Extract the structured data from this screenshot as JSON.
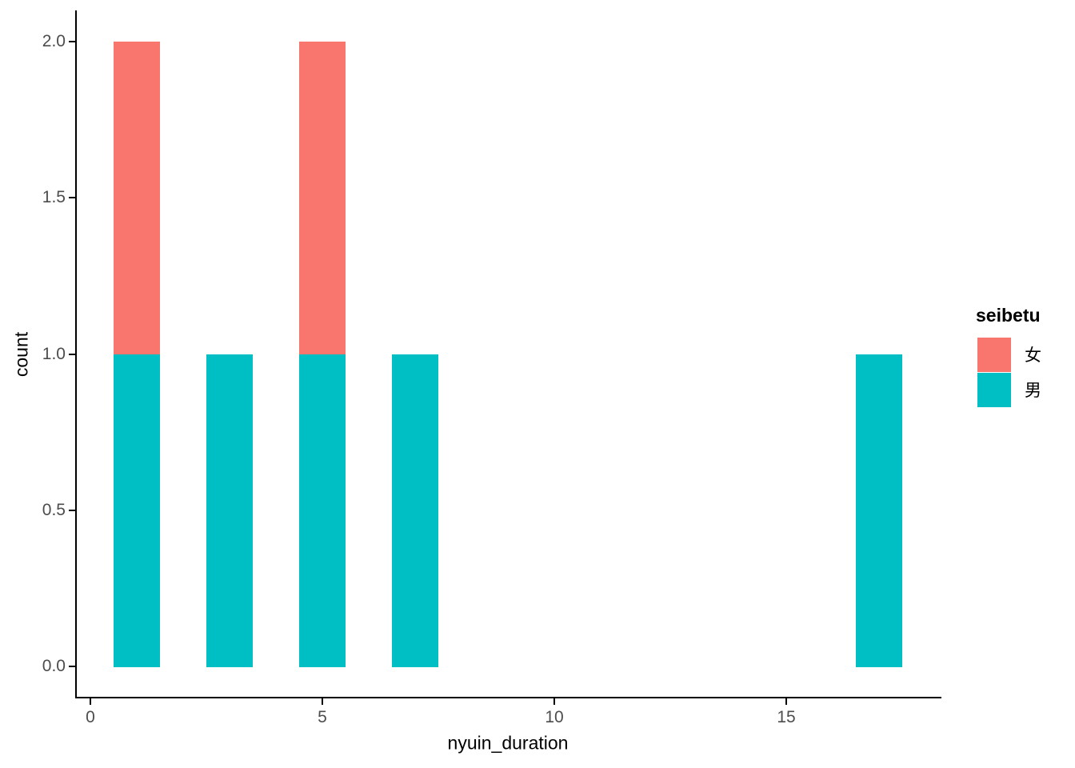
{
  "chart_data": {
    "type": "bar",
    "subtype": "stacked-histogram",
    "title": "",
    "xlabel": "nyuin_duration",
    "ylabel": "count",
    "x": [
      1,
      3,
      5,
      7,
      17
    ],
    "binwidth": 1,
    "series": [
      {
        "name": "女",
        "color": "#F8766D",
        "values": [
          1,
          0,
          1,
          0,
          0
        ]
      },
      {
        "name": "男",
        "color": "#00BFC4",
        "values": [
          1,
          1,
          1,
          1,
          1
        ]
      }
    ],
    "stack_order_bottom_to_top": [
      "男",
      "女"
    ],
    "x_ticks": [
      0,
      5,
      10,
      15
    ],
    "x_tick_labels": [
      "0",
      "5",
      "10",
      "15"
    ],
    "y_ticks": [
      0,
      0.5,
      1,
      1.5,
      2
    ],
    "y_tick_labels": [
      "0.0",
      "0.5",
      "1.0",
      "1.5",
      "2.0"
    ],
    "xlim": [
      -0.35,
      18.35
    ],
    "ylim": [
      0,
      2
    ],
    "grid": false,
    "legend": {
      "title": "seibetu",
      "position": "right",
      "entries": [
        {
          "label": "女",
          "color": "#F8766D"
        },
        {
          "label": "男",
          "color": "#00BFC4"
        }
      ]
    },
    "colors": {
      "female": "#F8766D",
      "male": "#00BFC4",
      "axis_line": "#000000",
      "tick_label": "#4d4d4d",
      "title_text": "#000000",
      "background": "#ffffff"
    }
  }
}
